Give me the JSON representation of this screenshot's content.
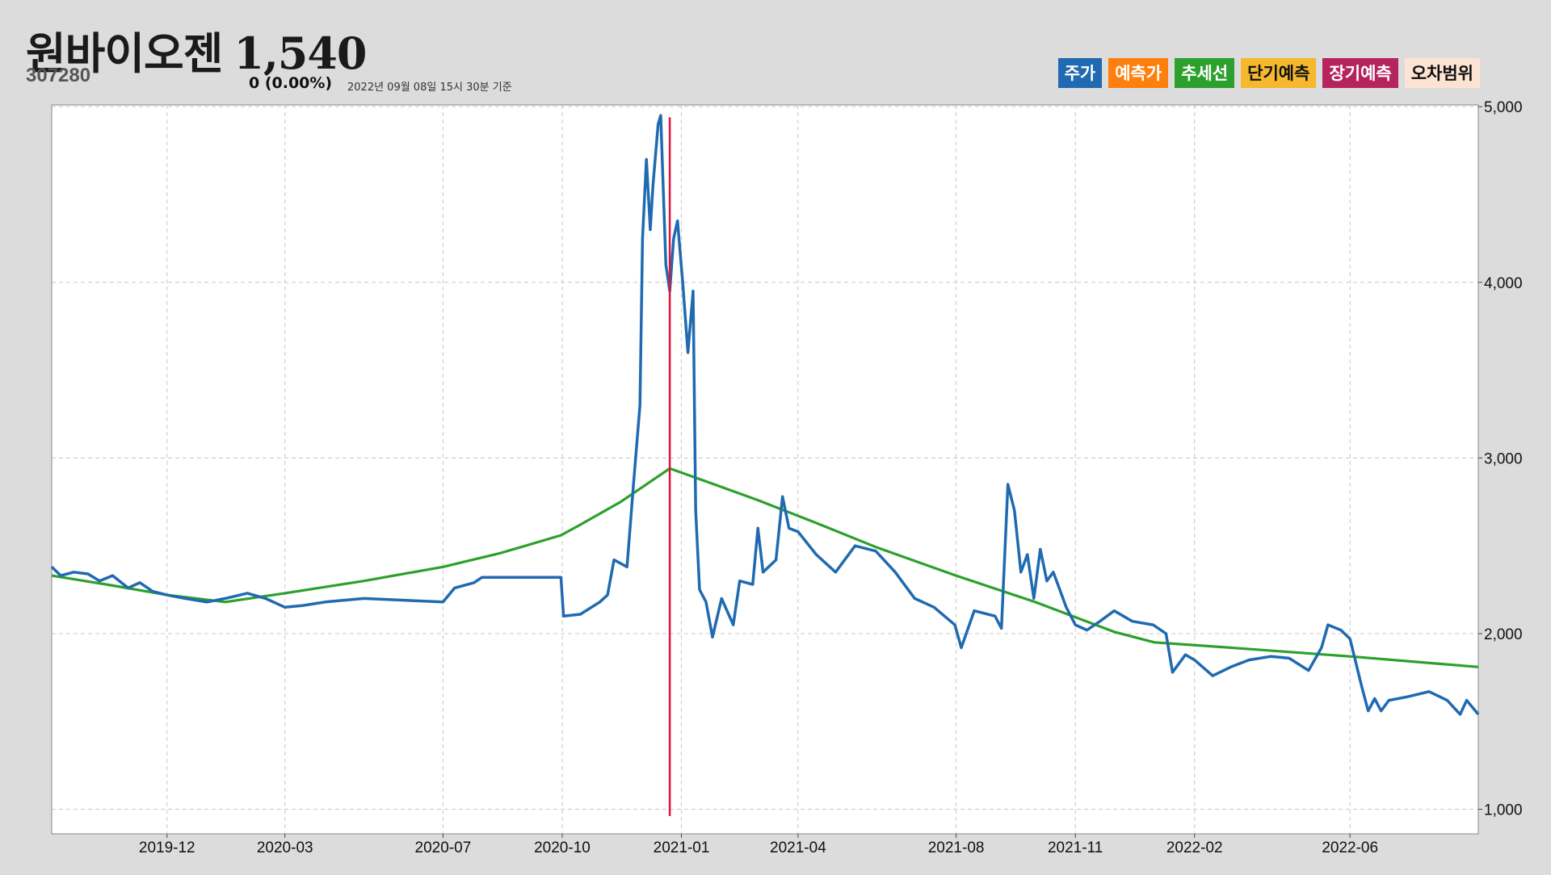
{
  "header": {
    "name": "원바이오젠",
    "price": "1,540",
    "code": "307280",
    "change": "0 (0.00%)",
    "timestamp": "2022년 09월 08일 15시 30분 기준"
  },
  "legend": [
    {
      "label": "주가",
      "bg": "#1f6ab0",
      "fg": "#ffffff"
    },
    {
      "label": "예측가",
      "bg": "#ff7f0e",
      "fg": "#ffffff"
    },
    {
      "label": "추세선",
      "bg": "#2ca02c",
      "fg": "#ffffff"
    },
    {
      "label": "단기예측",
      "bg": "#f5b82e",
      "fg": "#111111"
    },
    {
      "label": "장기예측",
      "bg": "#b5245e",
      "fg": "#ffffff"
    },
    {
      "label": "오차범위",
      "bg": "#fde3d3",
      "fg": "#111111"
    }
  ],
  "chart_data": {
    "type": "line",
    "x_ticks": [
      "2019-12",
      "2020-03",
      "2020-07",
      "2020-10",
      "2021-01",
      "2021-04",
      "2021-08",
      "2021-11",
      "2022-02",
      "2022-06"
    ],
    "y_ticks": [
      "1,000",
      "2,000",
      "3,000",
      "4,000",
      "5,000"
    ],
    "ylim": [
      860,
      5010
    ],
    "xlim": [
      "2019-09-03",
      "2022-09-08"
    ],
    "grid": true,
    "colors": {
      "price": "#1f6ab0",
      "trend": "#2ca02c",
      "marker": "#e0143c"
    },
    "marker_date": "2020-12-23",
    "series": [
      {
        "name": "주가",
        "points": [
          [
            "2019-09-03",
            2380
          ],
          [
            "2019-09-10",
            2330
          ],
          [
            "2019-09-20",
            2350
          ],
          [
            "2019-10-01",
            2340
          ],
          [
            "2019-10-10",
            2300
          ],
          [
            "2019-10-20",
            2330
          ],
          [
            "2019-11-01",
            2260
          ],
          [
            "2019-11-10",
            2290
          ],
          [
            "2019-11-20",
            2240
          ],
          [
            "2019-12-01",
            2220
          ],
          [
            "2019-12-15",
            2200
          ],
          [
            "2020-01-01",
            2180
          ],
          [
            "2020-01-15",
            2200
          ],
          [
            "2020-02-01",
            2230
          ],
          [
            "2020-02-15",
            2200
          ],
          [
            "2020-03-01",
            2150
          ],
          [
            "2020-03-15",
            2160
          ],
          [
            "2020-04-01",
            2180
          ],
          [
            "2020-05-01",
            2200
          ],
          [
            "2020-06-01",
            2190
          ],
          [
            "2020-07-01",
            2180
          ],
          [
            "2020-07-10",
            2260
          ],
          [
            "2020-07-25",
            2290
          ],
          [
            "2020-07-31",
            2320
          ],
          [
            "2020-09-30",
            2320
          ],
          [
            "2020-10-02",
            2100
          ],
          [
            "2020-10-15",
            2110
          ],
          [
            "2020-10-30",
            2180
          ],
          [
            "2020-11-05",
            2220
          ],
          [
            "2020-11-10",
            2420
          ],
          [
            "2020-11-15",
            2400
          ],
          [
            "2020-11-20",
            2380
          ],
          [
            "2020-11-25",
            2850
          ],
          [
            "2020-11-30",
            3300
          ],
          [
            "2020-12-02",
            4250
          ],
          [
            "2020-12-05",
            4700
          ],
          [
            "2020-12-08",
            4300
          ],
          [
            "2020-12-10",
            4550
          ],
          [
            "2020-12-14",
            4900
          ],
          [
            "2020-12-16",
            4950
          ],
          [
            "2020-12-20",
            4100
          ],
          [
            "2020-12-23",
            3950
          ],
          [
            "2020-12-26",
            4250
          ],
          [
            "2020-12-29",
            4350
          ],
          [
            "2021-01-02",
            4000
          ],
          [
            "2021-01-06",
            3600
          ],
          [
            "2021-01-10",
            3950
          ],
          [
            "2021-01-12",
            2700
          ],
          [
            "2021-01-15",
            2250
          ],
          [
            "2021-01-20",
            2180
          ],
          [
            "2021-01-25",
            1980
          ],
          [
            "2021-02-01",
            2200
          ],
          [
            "2021-02-10",
            2050
          ],
          [
            "2021-02-15",
            2300
          ],
          [
            "2021-02-25",
            2280
          ],
          [
            "2021-03-01",
            2600
          ],
          [
            "2021-03-05",
            2350
          ],
          [
            "2021-03-15",
            2420
          ],
          [
            "2021-03-20",
            2780
          ],
          [
            "2021-03-25",
            2600
          ],
          [
            "2021-04-01",
            2580
          ],
          [
            "2021-04-15",
            2450
          ],
          [
            "2021-04-30",
            2350
          ],
          [
            "2021-05-15",
            2500
          ],
          [
            "2021-05-31",
            2470
          ],
          [
            "2021-06-15",
            2350
          ],
          [
            "2021-06-30",
            2200
          ],
          [
            "2021-07-15",
            2150
          ],
          [
            "2021-07-31",
            2050
          ],
          [
            "2021-08-05",
            1920
          ],
          [
            "2021-08-15",
            2130
          ],
          [
            "2021-08-31",
            2100
          ],
          [
            "2021-09-05",
            2030
          ],
          [
            "2021-09-10",
            2850
          ],
          [
            "2021-09-15",
            2700
          ],
          [
            "2021-09-20",
            2350
          ],
          [
            "2021-09-25",
            2450
          ],
          [
            "2021-09-30",
            2200
          ],
          [
            "2021-10-05",
            2480
          ],
          [
            "2021-10-10",
            2300
          ],
          [
            "2021-10-15",
            2350
          ],
          [
            "2021-10-20",
            2250
          ],
          [
            "2021-10-25",
            2150
          ],
          [
            "2021-11-01",
            2050
          ],
          [
            "2021-11-10",
            2020
          ],
          [
            "2021-11-20",
            2070
          ],
          [
            "2021-12-01",
            2130
          ],
          [
            "2021-12-15",
            2070
          ],
          [
            "2021-12-31",
            2050
          ],
          [
            "2022-01-10",
            2000
          ],
          [
            "2022-01-15",
            1780
          ],
          [
            "2022-01-25",
            1880
          ],
          [
            "2022-02-01",
            1850
          ],
          [
            "2022-02-15",
            1760
          ],
          [
            "2022-03-01",
            1810
          ],
          [
            "2022-03-15",
            1850
          ],
          [
            "2022-04-01",
            1870
          ],
          [
            "2022-04-15",
            1860
          ],
          [
            "2022-04-30",
            1790
          ],
          [
            "2022-05-10",
            1920
          ],
          [
            "2022-05-15",
            2050
          ],
          [
            "2022-05-25",
            2020
          ],
          [
            "2022-06-01",
            1970
          ],
          [
            "2022-06-10",
            1700
          ],
          [
            "2022-06-15",
            1560
          ],
          [
            "2022-06-20",
            1630
          ],
          [
            "2022-06-25",
            1560
          ],
          [
            "2022-07-01",
            1620
          ],
          [
            "2022-07-15",
            1640
          ],
          [
            "2022-08-01",
            1670
          ],
          [
            "2022-08-15",
            1620
          ],
          [
            "2022-08-20",
            1580
          ],
          [
            "2022-08-25",
            1540
          ],
          [
            "2022-08-30",
            1620
          ],
          [
            "2022-09-08",
            1540
          ]
        ]
      },
      {
        "name": "추세선",
        "points": [
          [
            "2019-09-03",
            2330
          ],
          [
            "2019-10-15",
            2280
          ],
          [
            "2019-12-01",
            2220
          ],
          [
            "2020-01-15",
            2180
          ],
          [
            "2020-03-01",
            2230
          ],
          [
            "2020-05-01",
            2300
          ],
          [
            "2020-07-01",
            2380
          ],
          [
            "2020-08-15",
            2460
          ],
          [
            "2020-09-30",
            2560
          ],
          [
            "2020-10-15",
            2620
          ],
          [
            "2020-11-15",
            2750
          ],
          [
            "2020-12-15",
            2900
          ],
          [
            "2020-12-23",
            2940
          ],
          [
            "2021-01-15",
            2880
          ],
          [
            "2021-03-01",
            2760
          ],
          [
            "2021-04-15",
            2630
          ],
          [
            "2021-06-01",
            2490
          ],
          [
            "2021-08-01",
            2330
          ],
          [
            "2021-10-01",
            2180
          ],
          [
            "2021-12-01",
            2010
          ],
          [
            "2022-01-01",
            1950
          ],
          [
            "2022-03-01",
            1920
          ],
          [
            "2022-06-01",
            1870
          ],
          [
            "2022-09-08",
            1810
          ]
        ]
      }
    ]
  }
}
